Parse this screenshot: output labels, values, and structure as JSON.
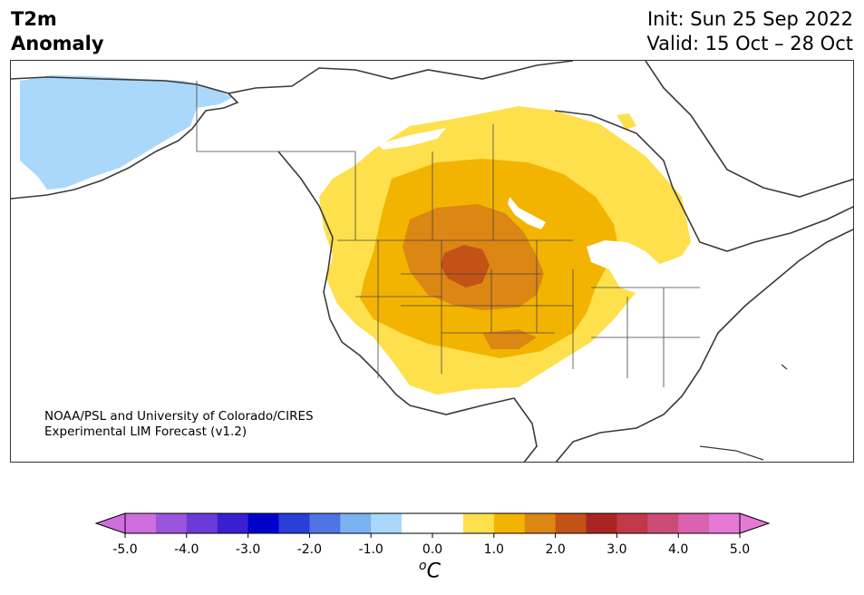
{
  "title": {
    "line1": "T2m",
    "line2": "Anomaly"
  },
  "dates": {
    "init": "Init: Sun 25 Sep 2022",
    "valid": "Valid: 15 Oct – 28 Oct"
  },
  "credit": {
    "line1": "NOAA/PSL and University of Colorado/CIRES",
    "line2": "Experimental LIM Forecast (v1.2)"
  },
  "colorbar": {
    "unit_symbol": "C",
    "tick_labels": [
      "-5.0",
      "-4.0",
      "-3.0",
      "-2.0",
      "-1.0",
      "0.0",
      "1.0",
      "2.0",
      "3.0",
      "4.0",
      "5.0"
    ],
    "colors": [
      "#d06ee0",
      "#9b55dc",
      "#6a3bd8",
      "#3a1fd0",
      "#0000cc",
      "#2a3ed8",
      "#4f74e4",
      "#7cb2f2",
      "#aad8fa",
      "#ffffff",
      "#ffffff",
      "#fde04c",
      "#f2b400",
      "#dc8614",
      "#c25216",
      "#aa2424",
      "#c23848",
      "#cc4c78",
      "#da62ae",
      "#e678d6"
    ]
  },
  "map_features": {
    "anomaly_colors": {
      "light_blue": "#aad8fa",
      "yellow": "#fde04c",
      "gold": "#f2b400",
      "orange": "#dc8614",
      "dark_orange": "#c25216"
    },
    "region_depicted": "North America"
  }
}
